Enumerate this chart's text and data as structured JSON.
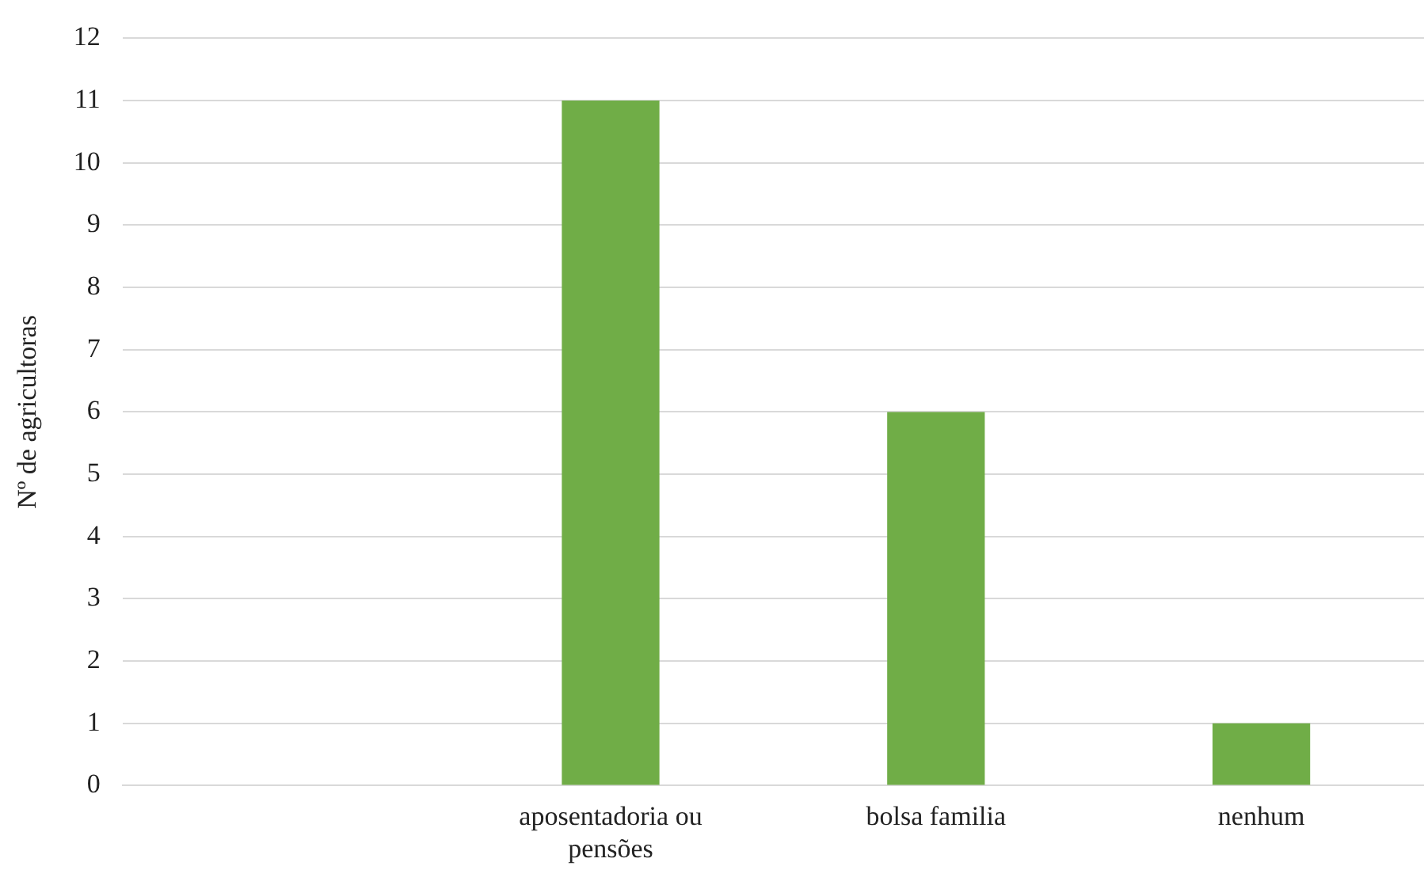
{
  "chart_data": {
    "type": "bar",
    "ylabel": "Nº de agricultoras",
    "categories": [
      null,
      "aposentadoria ou pensões",
      "bolsa familia",
      "nenhum"
    ],
    "values": [
      null,
      11,
      6,
      1
    ],
    "color": "#70ad47",
    "ylim": [
      0,
      12
    ],
    "yticks": [
      0,
      1,
      2,
      3,
      4,
      5,
      6,
      7,
      8,
      9,
      10,
      11,
      12
    ],
    "grid": "y",
    "legend": false
  }
}
